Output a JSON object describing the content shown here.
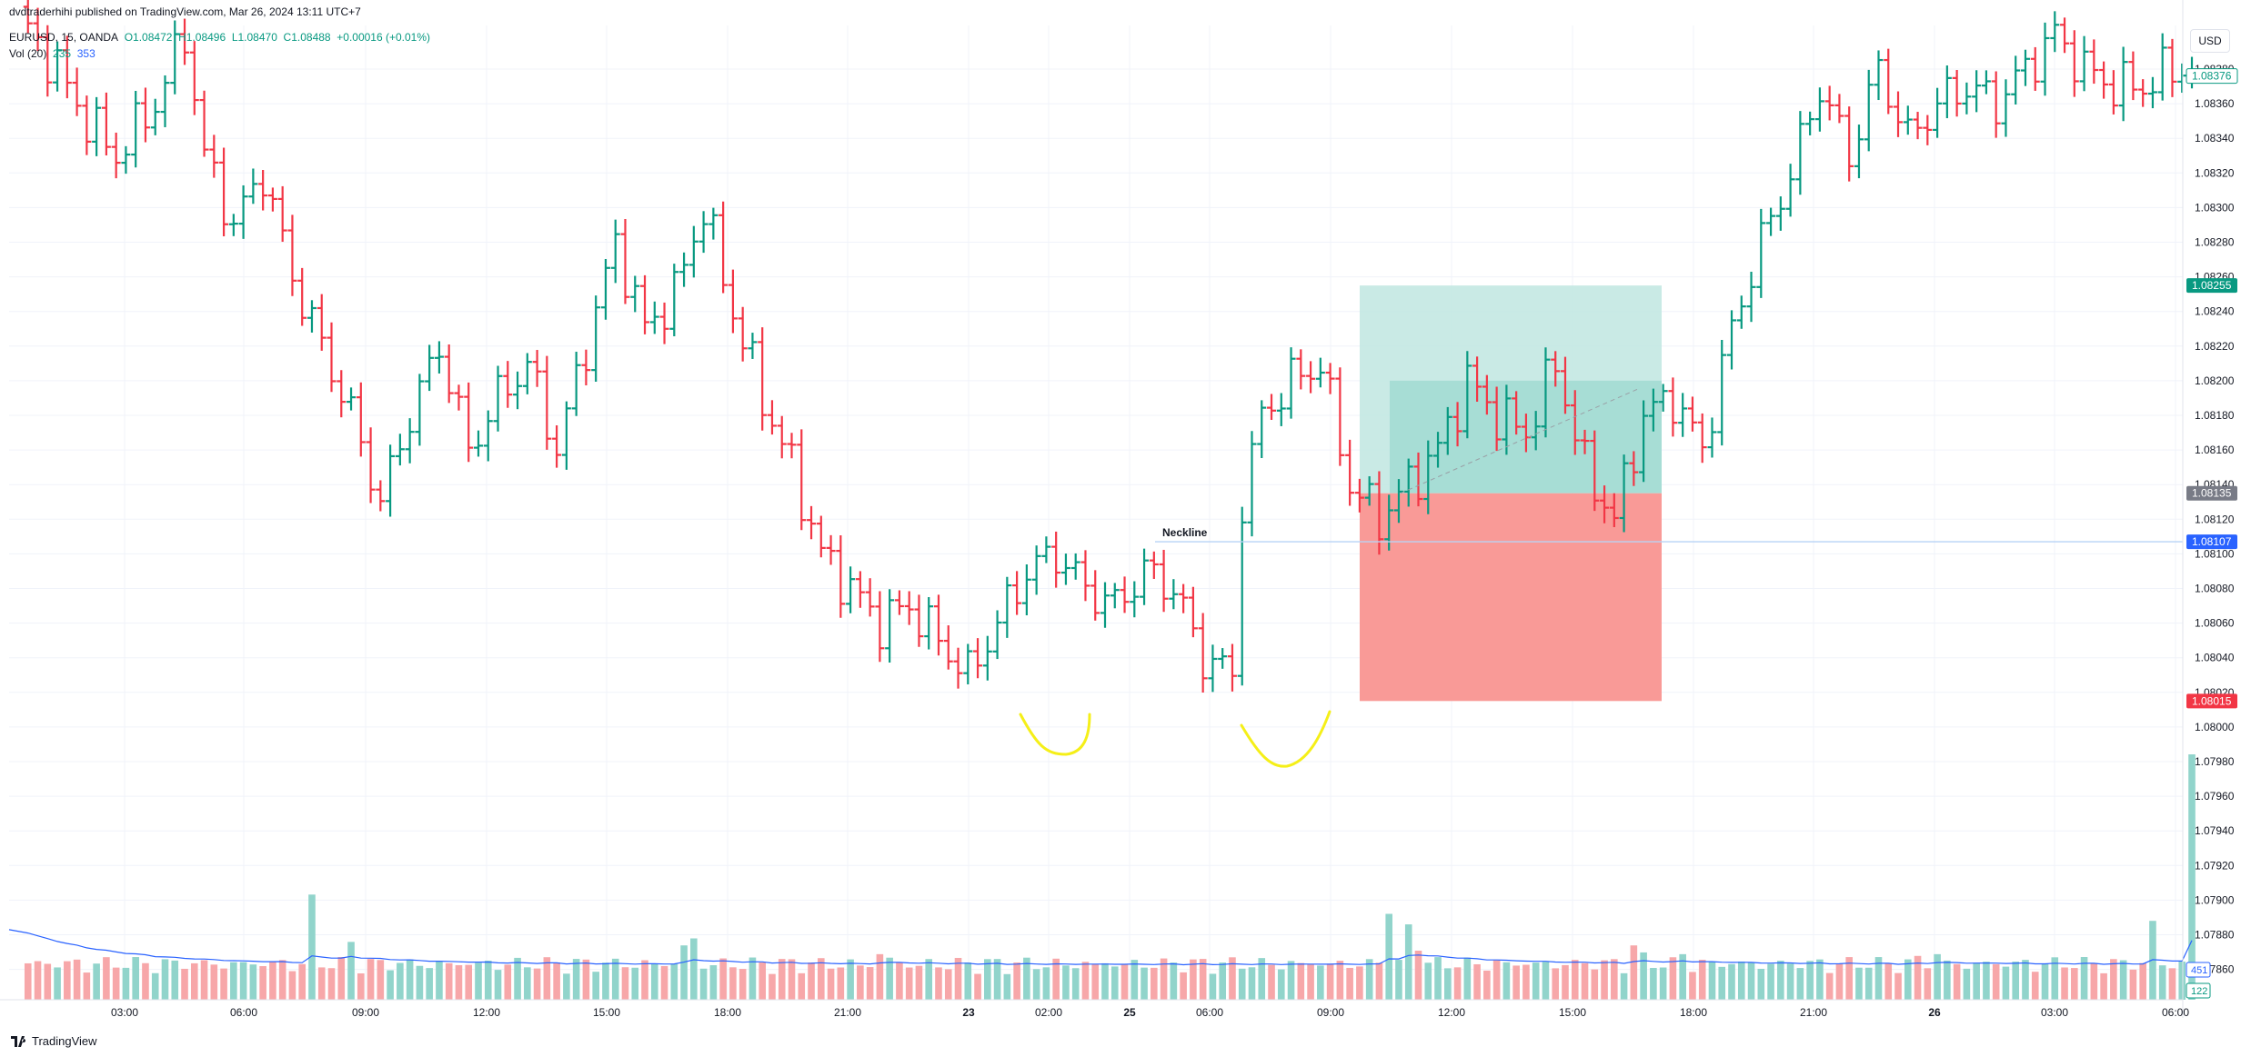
{
  "header": {
    "published": "dvdtraderhihi published on TradingView.com, Mar 26, 2024 13:11 UTC+7",
    "symbol": "EURUSD, 15, OANDA",
    "open": "O1.08472",
    "high": "H1.08496",
    "low": "L1.08470",
    "close": "C1.08488",
    "change": "+0.00016 (+0.01%)",
    "volume_label": "Vol (20)",
    "volume_value": "235",
    "volume_ma": "353"
  },
  "currency_button": "USD",
  "brand": "TradingView",
  "annotations": {
    "neckline": "Neckline"
  },
  "price_badges": [
    {
      "text": "1.08376",
      "value": 1.08376,
      "style": "outline-green"
    },
    {
      "text": "1.08255",
      "value": 1.08255,
      "color": "#089981"
    },
    {
      "text": "1.08135",
      "value": 1.08135,
      "color": "#787b86"
    },
    {
      "text": "1.08107",
      "value": 1.08107,
      "color": "#2962ff"
    },
    {
      "text": "1.08015",
      "value": 1.08015,
      "color": "#f23645"
    }
  ],
  "volume_badges": [
    {
      "text": "451",
      "color": "#2962ff"
    },
    {
      "text": "122",
      "color": "#089981"
    }
  ],
  "colors": {
    "up": "#089981",
    "down": "#f23645",
    "grid": "#f0f3fa",
    "volume_up": "#91d4cb",
    "volume_down": "#f7a7a9",
    "volume_ma": "#2962ff",
    "profit_zone": "#bfe6e1",
    "loss_zone": "#f99a97",
    "highlight": "#f5ef18"
  },
  "chart_data": {
    "type": "ohlc",
    "symbol": "EURUSD",
    "timeframe": "15",
    "ylim": [
      1.0786,
      1.084
    ],
    "y_ticks": [
      "1.08380",
      "1.08360",
      "1.08340",
      "1.08320",
      "1.08300",
      "1.08280",
      "1.08260",
      "1.08240",
      "1.08220",
      "1.08200",
      "1.08180",
      "1.08160",
      "1.08140",
      "1.08120",
      "1.08100",
      "1.08080",
      "1.08060",
      "1.08040",
      "1.08020",
      "1.08000",
      "1.07980",
      "1.07960",
      "1.07940",
      "1.07920",
      "1.07900",
      "1.07880",
      "1.07860"
    ],
    "x_ticks": [
      "03:00",
      "06:00",
      "09:00",
      "12:00",
      "15:00",
      "18:00",
      "21:00",
      "23",
      "02:00",
      "25",
      "06:00",
      "09:00",
      "12:00",
      "15:00",
      "18:00",
      "21:00",
      "26",
      "03:00",
      "06:00"
    ],
    "neckline": 1.08107,
    "position": {
      "entry": 1.08135,
      "target": 1.08255,
      "stop": 1.08015
    },
    "anchors": [
      [
        0,
        1.0841
      ],
      [
        4,
        1.0838
      ],
      [
        7,
        1.0835
      ],
      [
        10,
        1.0833
      ],
      [
        14,
        1.0836
      ],
      [
        17,
        1.084
      ],
      [
        19,
        1.0833
      ],
      [
        22,
        1.0829
      ],
      [
        25,
        1.0832
      ],
      [
        28,
        1.0826
      ],
      [
        31,
        1.0822
      ],
      [
        34,
        1.0818
      ],
      [
        37,
        1.0813
      ],
      [
        40,
        1.0818
      ],
      [
        43,
        1.0822
      ],
      [
        46,
        1.0816
      ],
      [
        49,
        1.0819
      ],
      [
        52,
        1.0821
      ],
      [
        55,
        1.0816
      ],
      [
        58,
        1.0822
      ],
      [
        61,
        1.0828
      ],
      [
        64,
        1.0823
      ],
      [
        67,
        1.0825
      ],
      [
        70,
        1.083
      ],
      [
        73,
        1.0824
      ],
      [
        76,
        1.0819
      ],
      [
        79,
        1.0815
      ],
      [
        82,
        1.081
      ],
      [
        85,
        1.0808
      ],
      [
        88,
        1.0806
      ],
      [
        91,
        1.0807
      ],
      [
        94,
        1.0805
      ],
      [
        97,
        1.0803
      ],
      [
        100,
        1.0806
      ],
      [
        103,
        1.0809
      ],
      [
        106,
        1.081
      ],
      [
        109,
        1.0808
      ],
      [
        112,
        1.0807
      ],
      [
        115,
        1.0809
      ],
      [
        118,
        1.0808
      ],
      [
        121,
        1.0804
      ],
      [
        124,
        1.0803
      ],
      [
        125,
        1.0813
      ],
      [
        127,
        1.0818
      ],
      [
        130,
        1.082
      ],
      [
        133,
        1.0821
      ],
      [
        136,
        1.0814
      ],
      [
        139,
        1.0812
      ],
      [
        142,
        1.0814
      ],
      [
        145,
        1.0816
      ],
      [
        148,
        1.082
      ],
      [
        151,
        1.0818
      ],
      [
        154,
        1.0817
      ],
      [
        157,
        1.0821
      ],
      [
        160,
        1.0815
      ],
      [
        163,
        1.0812
      ],
      [
        166,
        1.0818
      ],
      [
        169,
        1.0819
      ],
      [
        172,
        1.0816
      ],
      [
        175,
        1.0823
      ],
      [
        178,
        1.0828
      ],
      [
        181,
        1.0832
      ],
      [
        184,
        1.0837
      ],
      [
        187,
        1.0833
      ],
      [
        190,
        1.0838
      ],
      [
        193,
        1.0834
      ],
      [
        196,
        1.0836
      ],
      [
        199,
        1.0837
      ],
      [
        202,
        1.0836
      ],
      [
        205,
        1.0838
      ],
      [
        208,
        1.084
      ],
      [
        211,
        1.0838
      ],
      [
        214,
        1.0837
      ],
      [
        217,
        1.0837
      ],
      [
        220,
        1.0838
      ]
    ],
    "volume": {
      "ylim": [
        0,
        2800
      ],
      "ma_start": 800,
      "spikes": [
        [
          30,
          1200
        ],
        [
          34,
          660
        ],
        [
          68,
          620
        ],
        [
          69,
          700
        ],
        [
          88,
          520
        ],
        [
          89,
          480
        ],
        [
          140,
          980
        ],
        [
          142,
          860
        ],
        [
          143,
          560
        ],
        [
          165,
          620
        ],
        [
          166,
          540
        ],
        [
          170,
          520
        ],
        [
          194,
          500
        ],
        [
          196,
          520
        ],
        [
          218,
          900
        ],
        [
          222,
          2800
        ],
        [
          223,
          680
        ]
      ]
    }
  }
}
